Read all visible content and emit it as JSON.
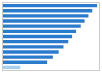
{
  "chart_data": {
    "type": "bar",
    "orientation": "horizontal",
    "categories": [
      null,
      null,
      null,
      null,
      null,
      null,
      null,
      null,
      null,
      null,
      null,
      null,
      null
    ],
    "values": [
      98,
      93,
      89,
      85,
      81,
      76,
      72,
      68,
      63,
      58,
      52,
      46,
      18
    ],
    "colors": [
      "#2b7bcc",
      "#2b7bcc",
      "#2b7bcc",
      "#2b7bcc",
      "#2b7bcc",
      "#2b7bcc",
      "#2b7bcc",
      "#2b7bcc",
      "#2b7bcc",
      "#2b7bcc",
      "#2b7bcc",
      "#2b7bcc",
      "#a8cef0"
    ],
    "xlim": [
      0,
      100
    ],
    "xticks": [],
    "grid": false,
    "tick_labels": false
  }
}
